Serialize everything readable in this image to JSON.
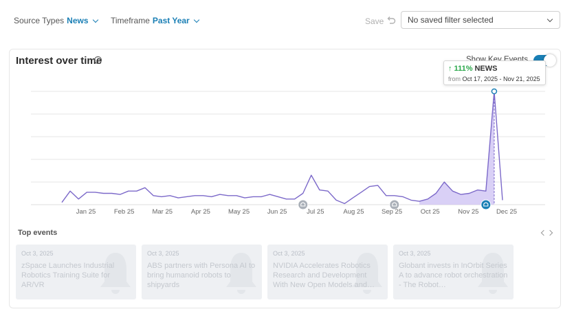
{
  "filters": {
    "source_label": "Source Types",
    "source_value": "News",
    "timeframe_label": "Timeframe",
    "timeframe_value": "Past Year",
    "save_label": "Save",
    "saved_filter": "No saved filter selected"
  },
  "card": {
    "title": "Interest over time",
    "key_events_label": "Show Key Events",
    "key_events_on": true
  },
  "tooltip": {
    "change": "↑ 111%",
    "series": "NEWS",
    "from_label": "from",
    "dates": "Oct 17, 2025 - Nov 21, 2025"
  },
  "chart_data": {
    "type": "line",
    "series_name": "NEWS",
    "x_ticks": [
      "Jan 25",
      "Feb 25",
      "Mar 25",
      "Apr 25",
      "May 25",
      "Jun 25",
      "Jul 25",
      "Aug 25",
      "Sep 25",
      "Oct 25",
      "Nov 25",
      "Dec 25"
    ],
    "values": [
      2,
      12,
      5,
      11,
      11,
      10,
      10,
      9,
      12,
      12,
      15,
      8,
      7,
      8,
      6,
      7,
      8,
      8,
      7,
      9,
      8,
      8,
      6,
      7,
      7,
      9,
      7,
      5,
      5,
      10,
      26,
      13,
      12,
      4,
      1,
      6,
      11,
      16,
      17,
      8,
      8,
      7,
      4,
      3,
      5,
      10,
      20,
      12,
      9,
      10,
      13,
      12,
      100,
      4
    ],
    "ylim": [
      0,
      100
    ],
    "highlight_range": [
      43,
      52
    ],
    "key_event_indices": [
      29,
      40,
      51
    ],
    "grid": true,
    "colors": {
      "line": "#7b68c9",
      "fill": "#cfc4f4",
      "event_marker": "#aab0b8",
      "active_event_marker": "#1a7fb5",
      "grid": "#e6e6e6"
    }
  },
  "top_events": {
    "title": "Top events",
    "items": [
      {
        "date": "Oct 3, 2025",
        "title": "zSpace Launches Industrial Robotics Training Suite for AR/VR"
      },
      {
        "date": "Oct 3, 2025",
        "title": "ABS partners with Persona AI to bring humanoid robots to shipyards"
      },
      {
        "date": "Oct 3, 2025",
        "title": "NVIDIA Accelerates Robotics Research and Development With New Open Models and…"
      },
      {
        "date": "Oct 3, 2025",
        "title": "Globant invests in InOrbit Series A to advance robot orchestration - The Robot…"
      }
    ]
  }
}
